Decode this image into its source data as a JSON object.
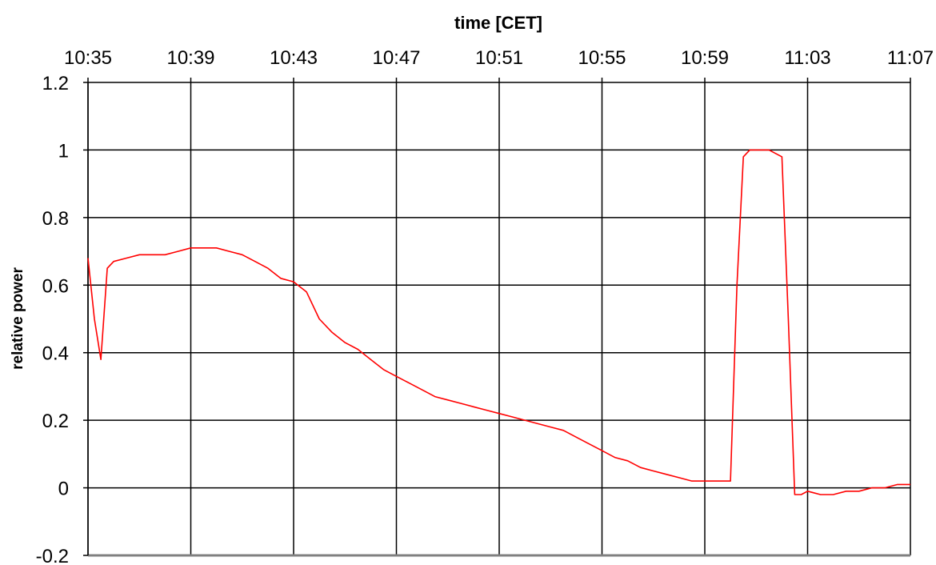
{
  "chart_data": {
    "type": "line",
    "title": "",
    "xlabel": "time [CET]",
    "ylabel": "relative power",
    "x_axis_position": "top",
    "x_tick_labels": [
      "10:35",
      "10:39",
      "10:43",
      "10:47",
      "10:51",
      "10:55",
      "10:59",
      "11:03",
      "11:07"
    ],
    "y_tick_labels": [
      "1.2",
      "1",
      "0.8",
      "0.6",
      "0.4",
      "0.2",
      "0",
      "-0.2"
    ],
    "xlim": [
      "10:35",
      "11:07"
    ],
    "ylim": [
      -0.2,
      1.2
    ],
    "grid": true,
    "legend": "none",
    "series": [
      {
        "color": "#ff0000",
        "x": [
          "10:35:00",
          "10:35:15",
          "10:35:30",
          "10:35:45",
          "10:36:00",
          "10:36:30",
          "10:37:00",
          "10:37:30",
          "10:38:00",
          "10:38:30",
          "10:39:00",
          "10:39:30",
          "10:40:00",
          "10:40:30",
          "10:41:00",
          "10:41:30",
          "10:42:00",
          "10:42:30",
          "10:43:00",
          "10:43:30",
          "10:44:00",
          "10:44:30",
          "10:45:00",
          "10:45:30",
          "10:46:00",
          "10:46:30",
          "10:47:00",
          "10:47:30",
          "10:48:00",
          "10:48:30",
          "10:49:00",
          "10:49:30",
          "10:50:00",
          "10:50:30",
          "10:51:00",
          "10:51:30",
          "10:52:00",
          "10:52:30",
          "10:53:00",
          "10:53:30",
          "10:54:00",
          "10:54:30",
          "10:55:00",
          "10:55:30",
          "10:56:00",
          "10:56:30",
          "10:57:00",
          "10:57:30",
          "10:58:00",
          "10:58:30",
          "10:59:00",
          "10:59:30",
          "11:00:00",
          "11:00:15",
          "11:00:30",
          "11:00:45",
          "11:01:00",
          "11:01:30",
          "11:02:00",
          "11:02:15",
          "11:02:30",
          "11:02:45",
          "11:03:00",
          "11:03:30",
          "11:04:00",
          "11:04:30",
          "11:05:00",
          "11:05:30",
          "11:06:00",
          "11:06:30",
          "11:07:00"
        ],
        "y": [
          0.68,
          0.5,
          0.38,
          0.65,
          0.67,
          0.68,
          0.69,
          0.69,
          0.69,
          0.7,
          0.71,
          0.71,
          0.71,
          0.7,
          0.69,
          0.67,
          0.65,
          0.62,
          0.61,
          0.58,
          0.5,
          0.46,
          0.43,
          0.41,
          0.38,
          0.35,
          0.33,
          0.31,
          0.29,
          0.27,
          0.26,
          0.25,
          0.24,
          0.23,
          0.22,
          0.21,
          0.2,
          0.19,
          0.18,
          0.17,
          0.15,
          0.13,
          0.11,
          0.09,
          0.08,
          0.06,
          0.05,
          0.04,
          0.03,
          0.02,
          0.02,
          0.02,
          0.02,
          0.6,
          0.98,
          1.0,
          1.0,
          1.0,
          0.98,
          0.5,
          -0.02,
          -0.02,
          -0.01,
          -0.02,
          -0.02,
          -0.01,
          -0.01,
          0.0,
          0.0,
          0.01,
          0.01
        ]
      }
    ]
  }
}
